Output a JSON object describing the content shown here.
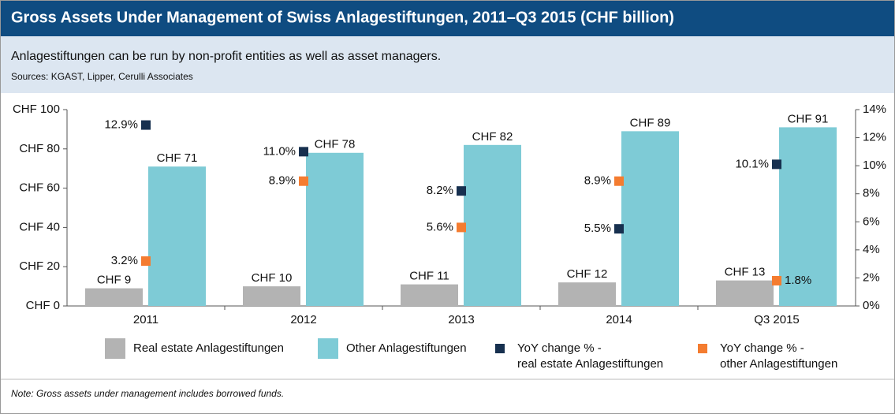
{
  "chart_data": {
    "type": "bar",
    "title": "Gross Assets Under Management of Swiss Anlagestiftungen, 2011–Q3 2015 (CHF billion)",
    "subtitle": "Anlagestiftungen can be run by non-profit entities as well as asset managers.",
    "source": "Sources: KGAST, Lipper, Cerulli Associates",
    "note": "Note: Gross assets under management includes borrowed funds.",
    "categories": [
      "2011",
      "2012",
      "2013",
      "2014",
      "Q3 2015"
    ],
    "series": [
      {
        "name": "Real estate Anlagestiftungen",
        "color": "#b3b3b3",
        "values": [
          9,
          10,
          11,
          12,
          13
        ],
        "value_labels": [
          "CHF 9",
          "CHF 10",
          "CHF 11",
          "CHF 12",
          "CHF 13"
        ]
      },
      {
        "name": "Other Anlagestiftungen",
        "color": "#7ecbd6",
        "values": [
          71,
          78,
          82,
          89,
          91
        ],
        "value_labels": [
          "CHF 71",
          "CHF 78",
          "CHF 82",
          "CHF 89",
          "CHF 91"
        ]
      },
      {
        "name": "YoY change % - real estate Anlagestiftungen",
        "color": "#17304f",
        "axis": "y2",
        "values": [
          12.9,
          11.0,
          8.2,
          5.5,
          10.1
        ],
        "value_labels": [
          "12.9%",
          "11.0%",
          "8.2%",
          "5.5%",
          "10.1%"
        ]
      },
      {
        "name": "YoY change % - other Anlagestiftungen",
        "color": "#f47c30",
        "axis": "y2",
        "values": [
          3.2,
          8.9,
          5.6,
          8.9,
          1.8
        ],
        "value_labels": [
          "3.2%",
          "8.9%",
          "5.6%",
          "8.9%",
          "1.8%"
        ]
      }
    ],
    "ylim": [
      0,
      100
    ],
    "yticks": [
      {
        "value": 0,
        "label": "CHF 0"
      },
      {
        "value": 20,
        "label": "CHF 20"
      },
      {
        "value": 40,
        "label": "CHF 40"
      },
      {
        "value": 60,
        "label": "CHF 60"
      },
      {
        "value": 80,
        "label": "CHF 80"
      },
      {
        "value": 100,
        "label": "CHF 100"
      }
    ],
    "y2lim": [
      0,
      14
    ],
    "y2ticks": [
      {
        "value": 0,
        "label": "0%"
      },
      {
        "value": 2,
        "label": "2%"
      },
      {
        "value": 4,
        "label": "4%"
      },
      {
        "value": 6,
        "label": "6%"
      },
      {
        "value": 8,
        "label": "8%"
      },
      {
        "value": 10,
        "label": "10%"
      },
      {
        "value": 12,
        "label": "12%"
      },
      {
        "value": 14,
        "label": "14%"
      }
    ],
    "grid": false
  }
}
